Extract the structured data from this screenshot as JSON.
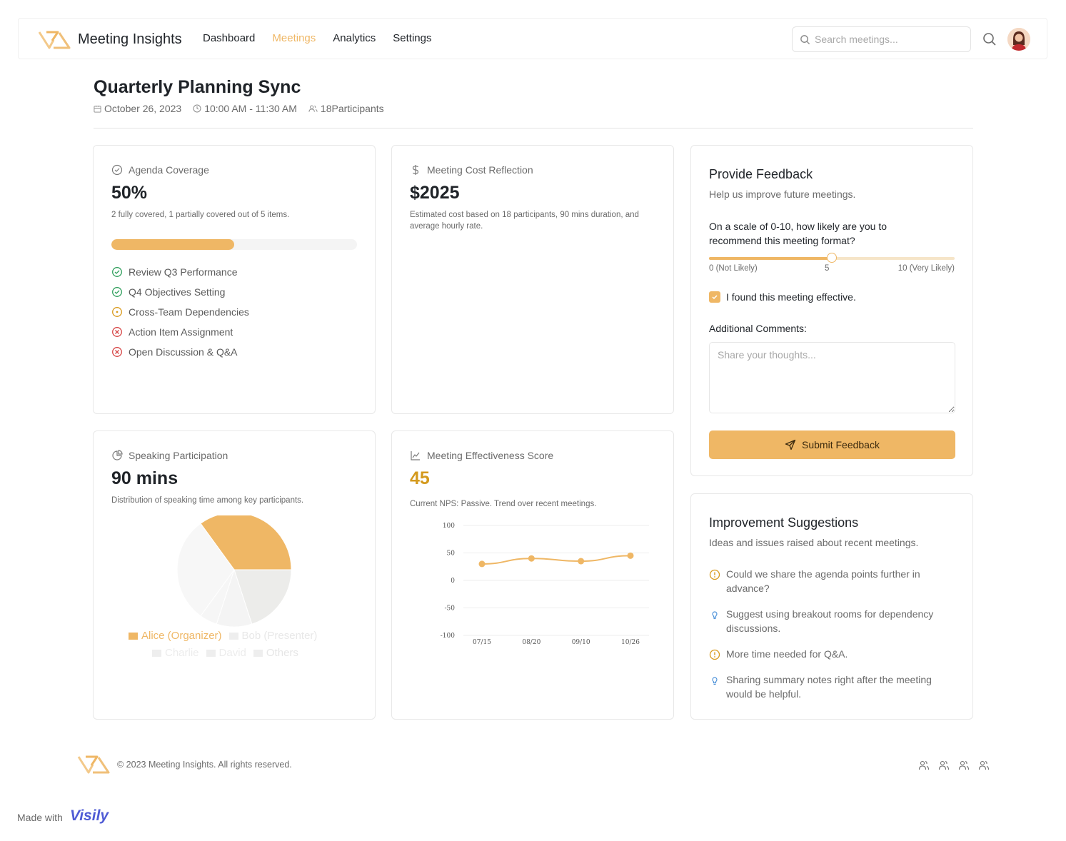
{
  "header": {
    "brand": "Meeting Insights",
    "nav": [
      {
        "label": "Dashboard",
        "active": false
      },
      {
        "label": "Meetings",
        "active": true
      },
      {
        "label": "Analytics",
        "active": false
      },
      {
        "label": "Settings",
        "active": false
      }
    ],
    "search_placeholder": "Search meetings..."
  },
  "meeting": {
    "title": "Quarterly Planning Sync",
    "date": "October 26, 2023",
    "time": "10:00 AM - 11:30 AM",
    "participants": "18Participants"
  },
  "agenda": {
    "heading": "Agenda Coverage",
    "value": "50%",
    "progress": 0.5,
    "summary": "2 fully covered, 1 partially covered out of 5 items.",
    "items": [
      {
        "label": "Review Q3 Performance",
        "status": "covered"
      },
      {
        "label": "Q4 Objectives Setting",
        "status": "covered"
      },
      {
        "label": "Cross-Team Dependencies",
        "status": "partial"
      },
      {
        "label": "Action Item Assignment",
        "status": "missed"
      },
      {
        "label": "Open Discussion & Q&A",
        "status": "missed"
      }
    ]
  },
  "cost": {
    "heading": "Meeting Cost Reflection",
    "value": "$2025",
    "description": "Estimated cost based on 18 participants, 90 mins duration, and average hourly rate."
  },
  "speaking": {
    "heading": "Speaking Participation",
    "value": "90 mins",
    "description": "Distribution of speaking time among key participants."
  },
  "effectiveness": {
    "heading": "Meeting Effectiveness Score",
    "value": "45",
    "description": "Current NPS: Passive. Trend over recent meetings."
  },
  "chart_data": [
    {
      "type": "pie",
      "categories": [
        "Alice (Organizer)",
        "Bob (Presenter)",
        "Charlie",
        "David",
        "Others"
      ],
      "values": [
        35,
        20,
        10,
        5,
        30
      ],
      "colors": [
        "#efb765",
        "#ececea",
        "#f4f4f4",
        "#f6f6f6",
        "#f7f7f7"
      ],
      "legend": "bottom"
    },
    {
      "type": "line",
      "x": [
        "07/15",
        "08/20",
        "09/10",
        "10/26"
      ],
      "series": [
        {
          "values": [
            30,
            40,
            35,
            45
          ],
          "color": "#efb765"
        }
      ],
      "ylim": [
        -100,
        100
      ],
      "yticks": [
        100,
        50,
        0,
        -50,
        -100
      ],
      "grid": true
    }
  ],
  "feedback": {
    "title": "Provide Feedback",
    "subtitle": "Help us improve future meetings.",
    "question": "On a scale of 0-10, how likely are you to recommend this meeting format?",
    "slider_value": 5,
    "slider_min_label": "0 (Not Likely)",
    "slider_mid_label": "5",
    "slider_max_label": "10 (Very Likely)",
    "checkbox_label": "I found this meeting effective.",
    "checkbox_checked": true,
    "comments_label": "Additional Comments:",
    "comments_placeholder": "Share your thoughts...",
    "submit_label": "Submit Feedback"
  },
  "suggestions": {
    "title": "Improvement Suggestions",
    "subtitle": "Ideas and issues raised about recent meetings.",
    "items": [
      {
        "icon": "alert-icon",
        "text": "Could we share the agenda points further in advance?"
      },
      {
        "icon": "lightbulb-icon",
        "text": "Suggest using breakout rooms for dependency discussions."
      },
      {
        "icon": "alert-icon",
        "text": "More time needed for Q&A."
      },
      {
        "icon": "lightbulb-icon",
        "text": "Sharing summary notes right after the meeting would be helpful."
      }
    ]
  },
  "footer": {
    "copyright": "© 2023 Meeting Insights. All rights reserved.",
    "made_with": "Made with",
    "visily": "Visily"
  },
  "colors": {
    "accent": "#efb765",
    "score": "#d49a1e",
    "success": "#2e9e5b",
    "warning": "#d99a1c",
    "danger": "#d64545",
    "info": "#4a90d9"
  }
}
